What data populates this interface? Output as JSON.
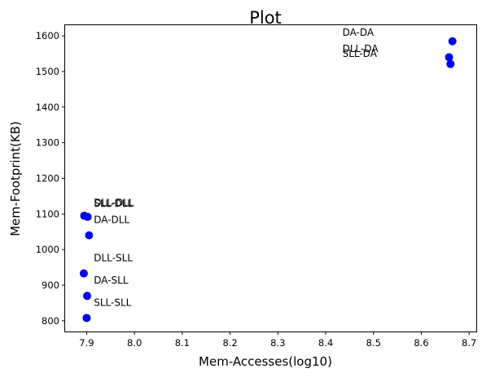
{
  "chart_data": {
    "type": "scatter",
    "title": "Plot",
    "xlabel": "Mem-Accesses(log10)",
    "ylabel": "Mem-Footprint(KB)",
    "xlim": [
      7.855,
      8.715
    ],
    "ylim": [
      770,
      1630
    ],
    "xticks": [
      "7.9",
      "8.0",
      "8.1",
      "8.2",
      "8.3",
      "8.4",
      "8.5",
      "8.6",
      "8.7"
    ],
    "yticks": [
      "800",
      "900",
      "1000",
      "1100",
      "1200",
      "1300",
      "1400",
      "1500",
      "1600"
    ],
    "grid": false,
    "marker_color": "#0000ff",
    "points": [
      {
        "label": "DA-DA",
        "x": 8.665,
        "y": 1585
      },
      {
        "label": "DLL-DA",
        "x": 8.658,
        "y": 1540
      },
      {
        "label": "SLL-DA",
        "x": 8.661,
        "y": 1521
      },
      {
        "label": "DLL-DLL",
        "x": 7.895,
        "y": 1095
      },
      {
        "label": "SLL-DLL",
        "x": 7.902,
        "y": 1092
      },
      {
        "label": "DA-DLL",
        "x": 7.905,
        "y": 1040
      },
      {
        "label": "DLL-SLL",
        "x": 7.894,
        "y": 933
      },
      {
        "label": "DA-SLL",
        "x": 7.901,
        "y": 870
      },
      {
        "label": "SLL-SLL",
        "x": 7.9,
        "y": 808
      }
    ],
    "annotations": [
      {
        "text": "DA-DA",
        "x": 8.435,
        "y": 1600
      },
      {
        "text": "DLL-DA",
        "x": 8.435,
        "y": 1555
      },
      {
        "text": "SLL-DA",
        "x": 8.435,
        "y": 1541
      },
      {
        "text": "DLL-DLL",
        "x": 7.915,
        "y": 1122
      },
      {
        "text": "SLL-DLL",
        "x": 7.915,
        "y": 1120
      },
      {
        "text": "DA-DLL",
        "x": 7.915,
        "y": 1074
      },
      {
        "text": "DLL-SLL",
        "x": 7.915,
        "y": 967
      },
      {
        "text": "DA-SLL",
        "x": 7.915,
        "y": 905
      },
      {
        "text": "SLL-SLL",
        "x": 7.915,
        "y": 842
      }
    ]
  }
}
